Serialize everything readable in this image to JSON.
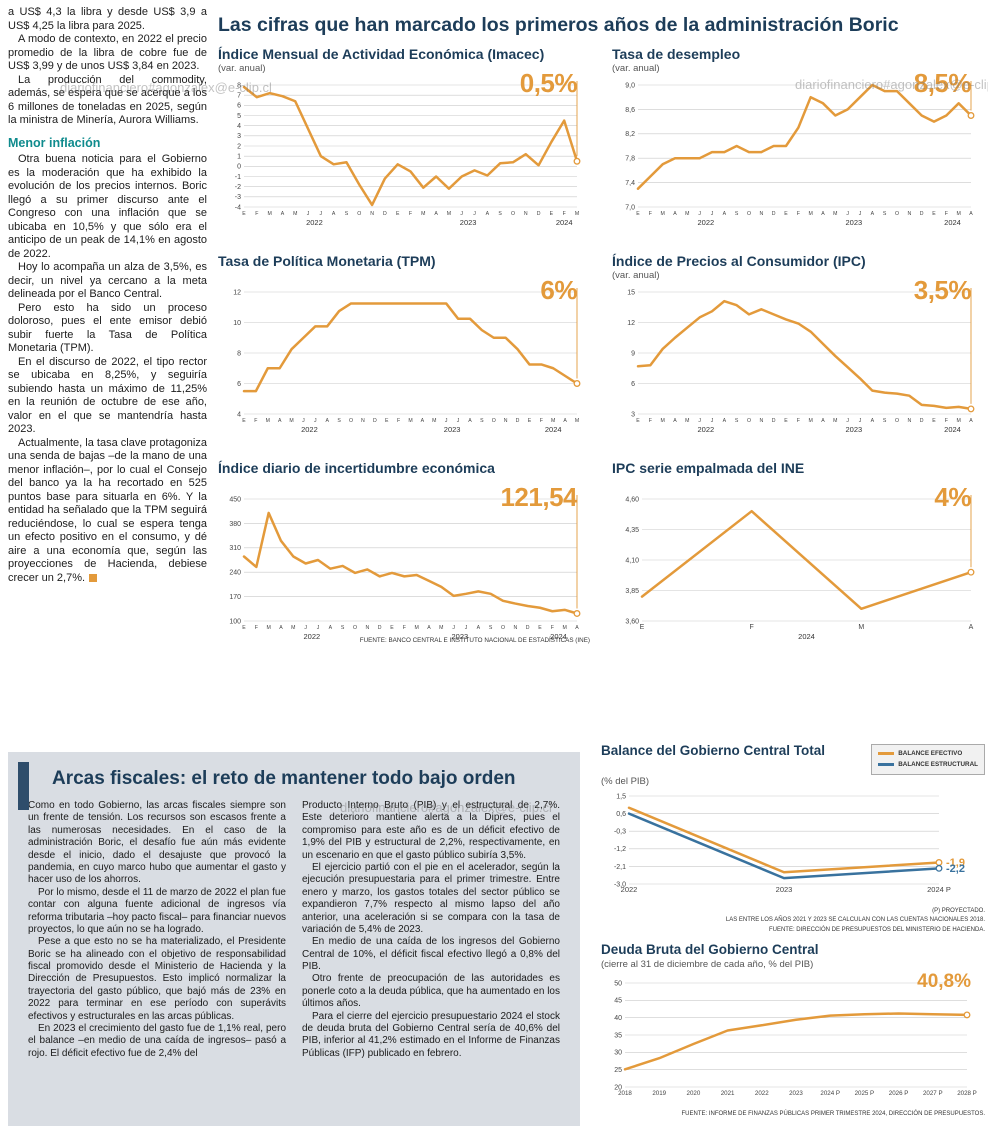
{
  "page": {
    "title": "Las cifras que han marcado los primeros años de la administración Boric",
    "watermark": "diariofinanciero#agonzalex@e-clip.cl"
  },
  "colors": {
    "accent_orange": "#E39A3B",
    "accent_blue": "#39729E",
    "navy": "#1d3d59",
    "teal": "#0f8b8d",
    "box_bg": "#d9dde3"
  },
  "left_column": {
    "paragraphs": [
      "a US$ 4,3 la libra y desde US$ 3,9 a US$ 4,25 la libra para 2025.",
      "A modo de contexto, en 2022 el precio promedio de la libra de cobre fue de US$ 3,99 y de unos US$ 3,84 en 2023.",
      "La producción del commodity, además, se espera que se acerque a los 6 millones de toneladas en 2025, según la ministra de Minería, Aurora Williams."
    ],
    "subhead": "Menor inflación",
    "paragraphs2": [
      "Otra buena noticia para el Gobierno es la moderación que ha exhibido la evolución de los precios internos. Boric llegó a su primer discurso ante el Congreso con una inflación que se ubicaba en 10,5% y que sólo era el anticipo de un peak de 14,1% en agosto de 2022.",
      "Hoy lo acompaña un alza de 3,5%, es decir, un nivel ya cercano a la meta delineada por el Banco Central.",
      "Pero esto ha sido un proceso doloroso, pues el ente emisor debió subir fuerte la Tasa de Política Monetaria (TPM).",
      "En el discurso de 2022, el tipo rector se ubicaba en 8,25%, y seguiría subiendo hasta un máximo de 11,25% en la reunión de octubre de ese año, valor en el que se mantendría hasta 2023.",
      "Actualmente, la tasa clave protagoniza una senda de bajas –de la mano de una menor inflación–, por lo cual el Consejo del banco ya la ha recortado en 525 puntos base para situarla en 6%. Y la entidad ha señalado que la TPM seguirá reduciéndose, lo cual se espera tenga un efecto positivo en el consumo, y dé aire a una economía que, según las proyecciones de Hacienda, debiese crecer un 2,7%."
    ]
  },
  "sources": {
    "top_charts": "FUENTE: BANCO CENTRAL E INSTITUTO NACIONAL DE ESTADÍSTICAS (INE)",
    "balance": [
      "(P) PROYECTADO.",
      "LAS ENTRE LOS AÑOS 2021 Y 2023 SE CALCULAN CON LAS CUENTAS NACIONALES 2018.",
      "FUENTE: DIRECCIÓN DE PRESUPUESTOS DEL MINISTERIO DE HACIENDA."
    ],
    "deuda": "FUENTE: INFORME DE FINANZAS PÚBLICAS PRIMER TRIMESTRE 2024, DIRECCIÓN DE PRESUPUESTOS."
  },
  "fiscal": {
    "title": "Arcas fiscales: el reto de mantener todo bajo orden",
    "col1": [
      "Como en todo Gobierno, las arcas fiscales siempre son un frente de tensión. Los recursos son escasos frente a las numerosas necesidades. En el caso de la administración Boric, el desafío fue aún más evidente desde el inicio, dado el desajuste que provocó la pandemia, en cuyo marco hubo que aumentar el gasto y hacer uso de los ahorros.",
      "Por lo mismo, desde el 11 de marzo de 2022 el plan fue contar con alguna fuente adicional de ingresos vía reforma tributaria –hoy pacto fiscal– para financiar nuevos proyectos, lo que aún no se ha logrado.",
      "Pese a que esto no se ha materializado, el Presidente Boric se ha alineado con el objetivo de responsabilidad fiscal promovido desde el Ministerio de Hacienda y la Dirección de Presupuestos. Esto implicó normalizar la trayectoria del gasto público, que bajó más de 23% en 2022 para terminar en ese período con superávits efectivos y estructurales en las arcas públicas.",
      "En 2023 el crecimiento del gasto fue de 1,1% real, pero el balance –en medio de una caída de ingresos– pasó a rojo. El déficit efectivo fue de 2,4% del"
    ],
    "col2": [
      "Producto Interno Bruto (PIB) y el estructural de 2,7%. Este deterioro mantiene alerta a la Dipres, pues el compromiso para este año es de un déficit efectivo de 1,9% del PIB y estructural de 2,2%, respectivamente, en un escenario en que el gasto público subiría 3,5%.",
      "El ejercicio partió con el pie en el acelerador, según la ejecución presupuestaria para el primer trimestre. Entre enero y marzo, los gastos totales del sector público se expandieron 7,7% respecto al mismo lapso del año anterior, una aceleración si se compara con la tasa de variación de 5,4% de 2023.",
      "En medio de una caída de los ingresos del Gobierno Central de 10%, el déficit fiscal efectivo llegó a 0,8% del PIB.",
      "Otro frente de preocupación de las autoridades es ponerle coto a la deuda pública, que ha aumentado en los últimos años.",
      "Para el cierre del ejercicio presupuestario 2024 el stock de deuda bruta del Gobierno Central sería de 40,6% del PIB, inferior al 41,2% estimado en el Informe de Finanzas Públicas (IFP) publicado en febrero."
    ]
  },
  "chart_data": [
    {
      "type": "line",
      "title": "Índice Mensual de Actividad Económica (Imacec)",
      "subtitle": "(var. anual)",
      "callout": "0,5%",
      "ylim": [
        -4,
        8
      ],
      "yticks": [
        8,
        7,
        6,
        5,
        4,
        3,
        2,
        1,
        0,
        -1,
        -2,
        -3,
        -4
      ],
      "x_labels": [
        "E",
        "F",
        "M",
        "A",
        "M",
        "J",
        "J",
        "A",
        "S",
        "O",
        "N",
        "D",
        "E",
        "F",
        "M",
        "A",
        "M",
        "J",
        "J",
        "A",
        "S",
        "O",
        "N",
        "D",
        "E",
        "F",
        "M"
      ],
      "year_labels": [
        {
          "label": "2022",
          "index": 5.5
        },
        {
          "label": "2023",
          "index": 17.5
        },
        {
          "label": "2024",
          "index": 25
        }
      ],
      "margins": {
        "l": 26,
        "r": 13,
        "t": 9,
        "b": 27
      },
      "callout_line": true,
      "series": [
        {
          "name": "Imacec",
          "color": "#E39A3B",
          "width": 2.5,
          "values": [
            7.8,
            6.8,
            7.2,
            6.9,
            6.4,
            3.7,
            1.0,
            0.2,
            0.4,
            -1.8,
            -3.8,
            -1.2,
            0.2,
            -0.5,
            -2.1,
            -1.0,
            -2.2,
            -1.0,
            -0.4,
            -0.9,
            0.3,
            0.4,
            1.2,
            0.1,
            2.4,
            4.5,
            0.5
          ]
        }
      ]
    },
    {
      "type": "line",
      "title": "Tasa de desempleo",
      "subtitle": "(var. anual)",
      "callout": "8,5%",
      "ylim": [
        7.0,
        9.0
      ],
      "yticks": [
        9.0,
        8.6,
        8.2,
        7.8,
        7.4,
        7.0
      ],
      "ytick_labels": [
        "9,0",
        "8,6",
        "8,2",
        "7,8",
        "7,4",
        "7,0"
      ],
      "x_labels": [
        "E",
        "F",
        "M",
        "A",
        "M",
        "J",
        "J",
        "A",
        "S",
        "O",
        "N",
        "D",
        "E",
        "F",
        "M",
        "A",
        "M",
        "J",
        "J",
        "A",
        "S",
        "O",
        "N",
        "D",
        "E",
        "F",
        "M",
        "A"
      ],
      "year_labels": [
        {
          "label": "2022",
          "index": 5.5
        },
        {
          "label": "2023",
          "index": 17.5
        },
        {
          "label": "2024",
          "index": 25.5
        }
      ],
      "margins": {
        "l": 26,
        "r": 13,
        "t": 9,
        "b": 27
      },
      "callout_line": true,
      "series": [
        {
          "name": "Tasa de desempleo",
          "color": "#E39A3B",
          "width": 2.5,
          "values": [
            7.3,
            7.5,
            7.7,
            7.8,
            7.8,
            7.8,
            7.9,
            7.9,
            8.0,
            7.9,
            7.9,
            8.0,
            8.0,
            8.3,
            8.8,
            8.7,
            8.5,
            8.6,
            8.8,
            9.0,
            8.9,
            8.9,
            8.7,
            8.5,
            8.4,
            8.5,
            8.7,
            8.5
          ]
        }
      ]
    },
    {
      "type": "line",
      "title": "Tasa de Política Monetaria (TPM)",
      "subtitle": "",
      "callout": "6%",
      "ylim": [
        4,
        12
      ],
      "yticks": [
        12,
        10,
        8,
        6,
        4
      ],
      "x_labels": [
        "E",
        "F",
        "M",
        "A",
        "M",
        "J",
        "J",
        "A",
        "S",
        "O",
        "N",
        "D",
        "E",
        "F",
        "M",
        "A",
        "M",
        "J",
        "J",
        "A",
        "S",
        "O",
        "N",
        "D",
        "E",
        "F",
        "M",
        "A",
        "M"
      ],
      "year_labels": [
        {
          "label": "2022",
          "index": 5.5
        },
        {
          "label": "2023",
          "index": 17.5
        },
        {
          "label": "2024",
          "index": 26
        }
      ],
      "margins": {
        "l": 26,
        "r": 13,
        "t": 9,
        "b": 27
      },
      "callout_line": true,
      "series": [
        {
          "name": "TPM",
          "color": "#E39A3B",
          "width": 2.5,
          "values": [
            5.5,
            5.5,
            7.0,
            7.0,
            8.25,
            9.0,
            9.75,
            9.75,
            10.75,
            11.25,
            11.25,
            11.25,
            11.25,
            11.25,
            11.25,
            11.25,
            11.25,
            11.25,
            10.25,
            10.25,
            9.5,
            9.0,
            9.0,
            8.25,
            7.25,
            7.25,
            7.0,
            6.5,
            6.0
          ]
        }
      ]
    },
    {
      "type": "line",
      "title": "Índice de Precios al Consumidor (IPC)",
      "subtitle": "(var. anual)",
      "callout": "3,5%",
      "ylim": [
        3,
        15
      ],
      "yticks": [
        15,
        12,
        9,
        6,
        3
      ],
      "x_labels": [
        "E",
        "F",
        "M",
        "A",
        "M",
        "J",
        "J",
        "A",
        "S",
        "O",
        "N",
        "D",
        "E",
        "F",
        "M",
        "A",
        "M",
        "J",
        "J",
        "A",
        "S",
        "O",
        "N",
        "D",
        "E",
        "F",
        "M",
        "A"
      ],
      "year_labels": [
        {
          "label": "2022",
          "index": 5.5
        },
        {
          "label": "2023",
          "index": 17.5
        },
        {
          "label": "2024",
          "index": 25.5
        }
      ],
      "margins": {
        "l": 26,
        "r": 13,
        "t": 9,
        "b": 27
      },
      "callout_line": true,
      "series": [
        {
          "name": "IPC",
          "color": "#E39A3B",
          "width": 2.5,
          "values": [
            7.7,
            7.8,
            9.4,
            10.5,
            11.5,
            12.5,
            13.1,
            14.1,
            13.7,
            12.8,
            13.3,
            12.8,
            12.3,
            11.9,
            11.1,
            9.9,
            8.7,
            7.6,
            6.5,
            5.3,
            5.1,
            5.0,
            4.8,
            3.9,
            3.8,
            3.6,
            3.7,
            3.5
          ]
        }
      ]
    },
    {
      "type": "line",
      "title": "Índice diario de incertidumbre económica",
      "subtitle": "",
      "callout": "121,54",
      "ylim": [
        100,
        450
      ],
      "yticks": [
        450,
        380,
        310,
        240,
        170,
        100
      ],
      "x_labels": [
        "E",
        "F",
        "M",
        "A",
        "M",
        "J",
        "J",
        "A",
        "S",
        "O",
        "N",
        "D",
        "E",
        "F",
        "M",
        "A",
        "M",
        "J",
        "J",
        "A",
        "S",
        "O",
        "N",
        "D",
        "E",
        "F",
        "M",
        "A"
      ],
      "year_labels": [
        {
          "label": "2022",
          "index": 5.5
        },
        {
          "label": "2023",
          "index": 17.5
        },
        {
          "label": "2024",
          "index": 25.5
        }
      ],
      "margins": {
        "l": 26,
        "r": 13,
        "t": 9,
        "b": 27
      },
      "callout_line": true,
      "series": [
        {
          "name": "Incertidumbre económica",
          "color": "#E39A3B",
          "width": 2.5,
          "values": [
            285,
            255,
            410,
            330,
            285,
            265,
            275,
            250,
            258,
            238,
            248,
            228,
            238,
            228,
            232,
            215,
            198,
            172,
            178,
            185,
            178,
            158,
            150,
            143,
            138,
            128,
            132,
            121.54
          ]
        }
      ]
    },
    {
      "type": "line",
      "title": "IPC serie empalmada del INE",
      "subtitle": "",
      "callout": "4%",
      "ylim": [
        3.6,
        4.6
      ],
      "yticks": [
        4.6,
        4.35,
        4.1,
        3.85,
        3.6
      ],
      "ytick_labels": [
        "4,60",
        "4,35",
        "4,10",
        "3,85",
        "3,60"
      ],
      "x_labels": [
        "E",
        "F",
        "M",
        "A"
      ],
      "year_labels": [
        {
          "label": "2024",
          "index": 1.5
        }
      ],
      "margins": {
        "l": 30,
        "r": 13,
        "t": 9,
        "b": 27
      },
      "x_font": 7,
      "callout_line": true,
      "series": [
        {
          "name": "IPC empalmada",
          "color": "#E39A3B",
          "width": 2.5,
          "values": [
            3.8,
            4.5,
            3.7,
            4.0
          ]
        }
      ]
    },
    {
      "type": "line",
      "title": "Balance del Gobierno Central Total",
      "subtitle": "(% del PIB)",
      "legend_position": "top-right",
      "ylim": [
        -3.0,
        1.5
      ],
      "yticks": [
        1.5,
        0.6,
        -0.3,
        -1.2,
        -2.1,
        -3.0
      ],
      "ytick_labels": [
        "1,5",
        "0,6",
        "-0,3",
        "-1,2",
        "-2,1",
        "-3,0"
      ],
      "x_labels": [
        "2022",
        "2023",
        "2024 P"
      ],
      "margins": {
        "l": 28,
        "r": 46,
        "t": 8,
        "b": 16
      },
      "x_font": 7.5,
      "series": [
        {
          "name": "BALANCE EFECTIVO",
          "color": "#E39A3B",
          "width": 2.5,
          "end_label": "-1,9",
          "values": [
            0.9,
            -2.4,
            -1.9
          ]
        },
        {
          "name": "BALANCE ESTRUCTURAL",
          "color": "#39729E",
          "width": 2.5,
          "end_label": "-2,2",
          "values": [
            0.6,
            -2.7,
            -2.2
          ]
        }
      ]
    },
    {
      "type": "line",
      "title": "Deuda Bruta del Gobierno Central",
      "subtitle": "(cierre al 31 de diciembre de cada año, % del PIB)",
      "callout": "40,8%",
      "ylim": [
        20,
        50
      ],
      "yticks": [
        50,
        45,
        40,
        35,
        30,
        25,
        20
      ],
      "x_labels": [
        "2018",
        "2019",
        "2020",
        "2021",
        "2022",
        "2023",
        "2024 P",
        "2025 P",
        "2026 P",
        "2027 P",
        "2028 P"
      ],
      "margins": {
        "l": 24,
        "r": 18,
        "t": 12,
        "b": 16
      },
      "x_font": 6.2,
      "series": [
        {
          "name": "Deuda bruta",
          "color": "#E39A3B",
          "width": 2.5,
          "values": [
            25.1,
            28.3,
            32.4,
            36.3,
            37.8,
            39.4,
            40.6,
            41.0,
            41.2,
            41.0,
            40.8
          ]
        }
      ]
    }
  ]
}
